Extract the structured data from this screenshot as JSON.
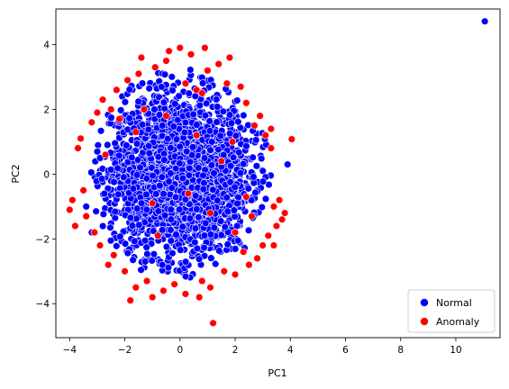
{
  "chart_data": {
    "type": "scatter",
    "xlabel": "PC1",
    "ylabel": "PC2",
    "xlim": [
      -4.5,
      11.6
    ],
    "ylim": [
      -5.05,
      5.1
    ],
    "xticks": [
      -4,
      -2,
      0,
      2,
      4,
      6,
      8,
      10
    ],
    "yticks": [
      -4,
      -2,
      0,
      2,
      4
    ],
    "grid": false,
    "legend_position": "bottom-right",
    "series": [
      {
        "name": "Normal",
        "color": "#0000ff",
        "cluster": {
          "center": [
            0.0,
            0.0
          ],
          "spread": [
            1.25,
            1.25
          ],
          "count": 2600,
          "radius_limit": 3.3
        },
        "values": [
          [
            11.05,
            4.72
          ],
          [
            3.9,
            0.3
          ],
          [
            -3.2,
            -1.8
          ],
          [
            -3.4,
            -1.0
          ],
          [
            -2.9,
            0.5
          ]
        ]
      },
      {
        "name": "Anomaly",
        "color": "#ff0000",
        "values": [
          [
            -4.0,
            -1.1
          ],
          [
            -3.9,
            -0.8
          ],
          [
            -3.8,
            -1.6
          ],
          [
            -3.7,
            0.8
          ],
          [
            -3.6,
            1.1
          ],
          [
            -3.5,
            -0.5
          ],
          [
            -3.4,
            -1.3
          ],
          [
            -3.2,
            1.6
          ],
          [
            -3.1,
            -1.8
          ],
          [
            -3.0,
            1.9
          ],
          [
            -2.9,
            -2.2
          ],
          [
            -2.8,
            2.3
          ],
          [
            -2.7,
            0.6
          ],
          [
            -2.6,
            -2.8
          ],
          [
            -2.5,
            2.0
          ],
          [
            -2.4,
            -2.5
          ],
          [
            -2.3,
            2.6
          ],
          [
            -2.2,
            1.7
          ],
          [
            -2.0,
            -3.0
          ],
          [
            -1.9,
            2.9
          ],
          [
            -1.8,
            -3.9
          ],
          [
            -1.6,
            -3.5
          ],
          [
            -1.5,
            3.1
          ],
          [
            -1.4,
            3.6
          ],
          [
            -1.2,
            -3.3
          ],
          [
            -1.0,
            -3.8
          ],
          [
            -0.9,
            3.3
          ],
          [
            -0.6,
            -3.6
          ],
          [
            -0.5,
            3.5
          ],
          [
            -0.4,
            3.8
          ],
          [
            -0.2,
            -3.4
          ],
          [
            0.0,
            3.9
          ],
          [
            0.2,
            -3.7
          ],
          [
            0.4,
            3.7
          ],
          [
            0.6,
            2.6
          ],
          [
            0.7,
            -3.8
          ],
          [
            0.8,
            -3.3
          ],
          [
            0.9,
            3.9
          ],
          [
            1.0,
            3.2
          ],
          [
            1.1,
            -3.5
          ],
          [
            1.2,
            -4.6
          ],
          [
            1.4,
            3.4
          ],
          [
            1.6,
            -3.0
          ],
          [
            1.7,
            2.8
          ],
          [
            1.8,
            3.6
          ],
          [
            2.0,
            -3.1
          ],
          [
            2.2,
            2.7
          ],
          [
            2.3,
            -2.4
          ],
          [
            2.4,
            2.2
          ],
          [
            2.5,
            -2.8
          ],
          [
            2.7,
            1.5
          ],
          [
            2.8,
            -2.6
          ],
          [
            2.9,
            1.8
          ],
          [
            3.0,
            -2.2
          ],
          [
            3.1,
            1.2
          ],
          [
            3.2,
            -1.9
          ],
          [
            3.3,
            0.8
          ],
          [
            3.4,
            -1.0
          ],
          [
            3.5,
            -1.6
          ],
          [
            3.6,
            -0.8
          ],
          [
            3.7,
            -1.4
          ],
          [
            3.8,
            -1.2
          ],
          [
            4.05,
            1.08
          ],
          [
            3.4,
            -2.2
          ],
          [
            3.3,
            1.4
          ],
          [
            2.6,
            -1.3
          ],
          [
            0.8,
            2.5
          ],
          [
            -0.5,
            1.8
          ],
          [
            1.1,
            -1.2
          ],
          [
            0.3,
            -0.6
          ],
          [
            1.5,
            0.4
          ],
          [
            -1.0,
            -0.9
          ],
          [
            2.0,
            -1.8
          ],
          [
            0.6,
            1.2
          ],
          [
            -1.6,
            1.3
          ],
          [
            1.9,
            1.0
          ],
          [
            -0.8,
            -1.9
          ],
          [
            2.4,
            -0.7
          ],
          [
            0.2,
            2.8
          ],
          [
            -1.3,
            2.0
          ]
        ]
      }
    ]
  }
}
